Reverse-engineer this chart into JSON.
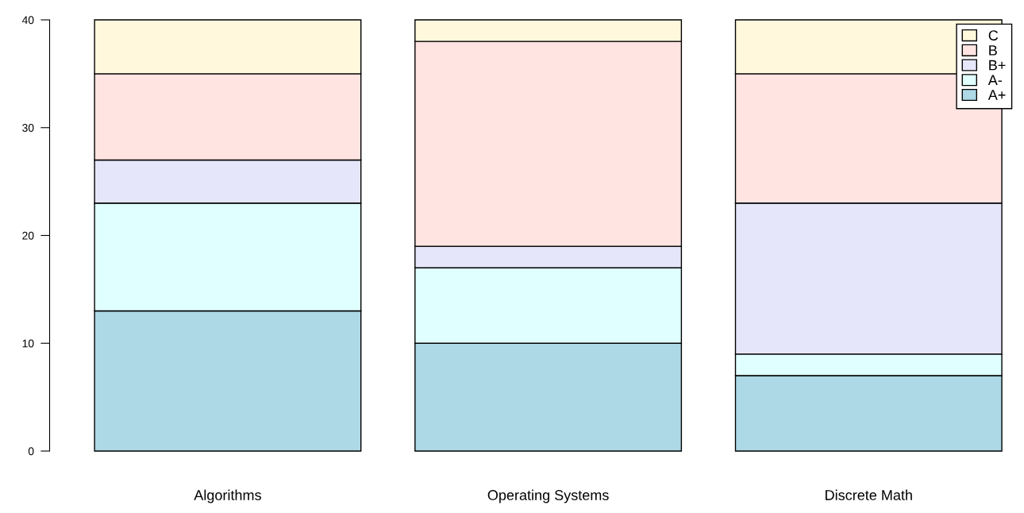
{
  "chart_data": {
    "type": "bar",
    "stacked": true,
    "categories": [
      "Algorithms",
      "Operating Systems",
      "Discrete Math"
    ],
    "series": [
      {
        "name": "A+",
        "color": "#add8e6",
        "values": [
          13,
          10,
          7
        ]
      },
      {
        "name": "A-",
        "color": "#e0ffff",
        "values": [
          10,
          7,
          2
        ]
      },
      {
        "name": "B+",
        "color": "#e6e6fa",
        "values": [
          4,
          2,
          14
        ]
      },
      {
        "name": "B",
        "color": "#ffe4e1",
        "values": [
          8,
          19,
          12
        ]
      },
      {
        "name": "C",
        "color": "#fff8dc",
        "values": [
          5,
          2,
          5
        ]
      }
    ],
    "ylim": [
      0,
      40
    ],
    "yticks": [
      0,
      10,
      20,
      30,
      40
    ],
    "grid": false,
    "legend": "top right"
  }
}
